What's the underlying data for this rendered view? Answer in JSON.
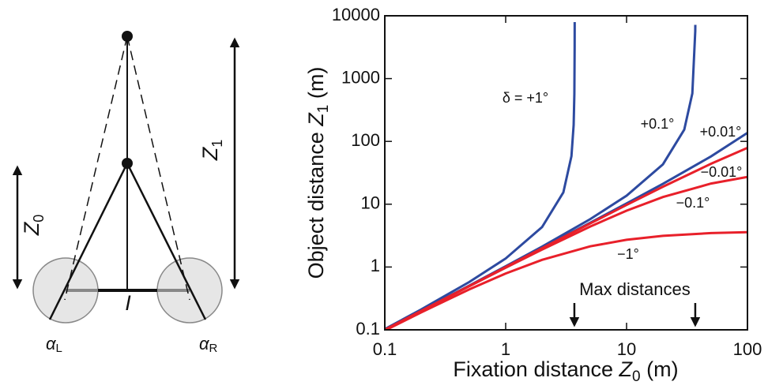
{
  "diagram": {
    "z0": {
      "var": "Z",
      "sub": "0"
    },
    "z1": {
      "var": "Z",
      "sub": "1"
    },
    "alpha_l": {
      "var": "α",
      "sub": "L"
    },
    "alpha_r": {
      "var": "α",
      "sub": "R"
    },
    "interocular": "I"
  },
  "chart_data": {
    "type": "line",
    "xlabel": {
      "text": "Fixation distance ",
      "var": "Z",
      "sub": "0",
      "unit": " (m)"
    },
    "ylabel": {
      "text": "Object distance ",
      "var": "Z",
      "sub": "1",
      "unit": " (m)"
    },
    "xscale": "log",
    "yscale": "log",
    "xlim": [
      0.1,
      100
    ],
    "ylim": [
      0.1,
      10000
    ],
    "xticks": [
      0.1,
      1,
      10,
      100
    ],
    "yticks": [
      0.1,
      1,
      10,
      100,
      1000,
      10000
    ],
    "series": [
      {
        "name": "δ = +1°",
        "color": "#2d4aa0",
        "x": [
          0.1,
          0.2,
          0.5,
          1,
          2,
          3,
          3.5,
          3.65,
          3.7,
          3.72,
          3.7225
        ],
        "values": [
          0.1028,
          0.2113,
          0.5775,
          1.367,
          4.32,
          15.43,
          58.1,
          183,
          568,
          3257,
          7937
        ]
      },
      {
        "name": "+0.1°",
        "color": "#2d4aa0",
        "x": [
          0.1,
          0.2,
          0.5,
          1,
          2,
          5,
          10,
          20,
          30,
          35,
          37,
          37.05
        ],
        "values": [
          0.1003,
          0.2011,
          0.5068,
          1.0276,
          2.1135,
          5.775,
          13.67,
          43.19,
          154,
          581,
          5682,
          7163
        ]
      },
      {
        "name": "+0.01°",
        "color": "#2d4aa0",
        "x": [
          0.1,
          0.2,
          0.5,
          1,
          2,
          5,
          10,
          20,
          50,
          100
        ],
        "values": [
          0.1,
          0.2001,
          0.5007,
          1.0027,
          2.011,
          5.068,
          10.276,
          21.13,
          57.75,
          136.7
        ]
      },
      {
        "name": "−0.01°",
        "color": "#e8202a",
        "x": [
          0.1,
          0.2,
          0.5,
          1,
          2,
          5,
          10,
          20,
          50,
          100
        ],
        "values": [
          0.1,
          0.1999,
          0.4993,
          0.9973,
          1.989,
          4.934,
          9.739,
          18.98,
          44.08,
          78.83
        ]
      },
      {
        "name": "−0.1°",
        "color": "#e8202a",
        "x": [
          0.1,
          0.2,
          0.5,
          1,
          2,
          5,
          10,
          20,
          50,
          100
        ],
        "values": [
          0.0997,
          0.1989,
          0.4934,
          0.9739,
          1.898,
          4.408,
          7.883,
          13.01,
          21.34,
          27.14
        ]
      },
      {
        "name": "−1°",
        "color": "#e8202a",
        "x": [
          0.1,
          0.2,
          0.5,
          1,
          2,
          5,
          10,
          20,
          50,
          100
        ],
        "values": [
          0.0974,
          0.1898,
          0.4408,
          0.788,
          1.301,
          2.134,
          2.714,
          3.14,
          3.466,
          3.585
        ]
      }
    ],
    "annotation": {
      "text": "Max distances",
      "arrows_x": [
        3.7,
        37
      ]
    }
  }
}
